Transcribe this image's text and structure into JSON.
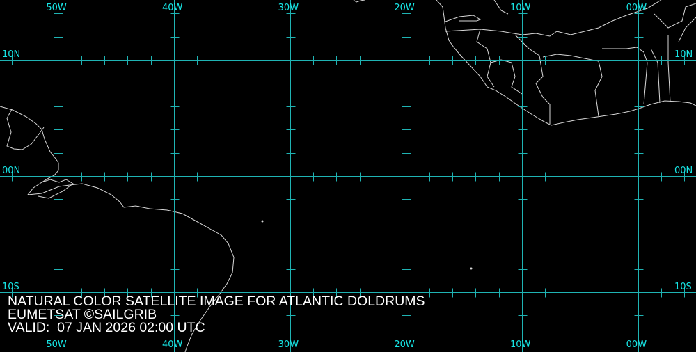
{
  "map": {
    "projection": "equirectangular",
    "extent": {
      "lon": [
        -55,
        5
      ],
      "lat": [
        -15.15,
        15.15
      ]
    },
    "graticule_step_deg": 10,
    "tick_step_deg": 2,
    "longitudes": [
      -50,
      -40,
      -30,
      -20,
      -10,
      0
    ],
    "latitudes": [
      10,
      0,
      -10
    ],
    "lon_labels": [
      "50W",
      "40W",
      "30W",
      "20W",
      "10W",
      "00W"
    ],
    "lat_labels": [
      "10N",
      "00N",
      "10S"
    ],
    "colors": {
      "background": "#000000",
      "grid": "#1fb3b3",
      "labels": "#17e6e6",
      "coastline": "#d8d8d8",
      "text": "#ffffff"
    }
  },
  "caption": {
    "line1": "NATURAL COLOR SATELLITE IMAGE FOR ATLANTIC DOLDRUMS",
    "line2": "EUMETSAT ©SAILGRIB",
    "line3": "VALID:  07 JAN 2026 02:00 UTC"
  }
}
